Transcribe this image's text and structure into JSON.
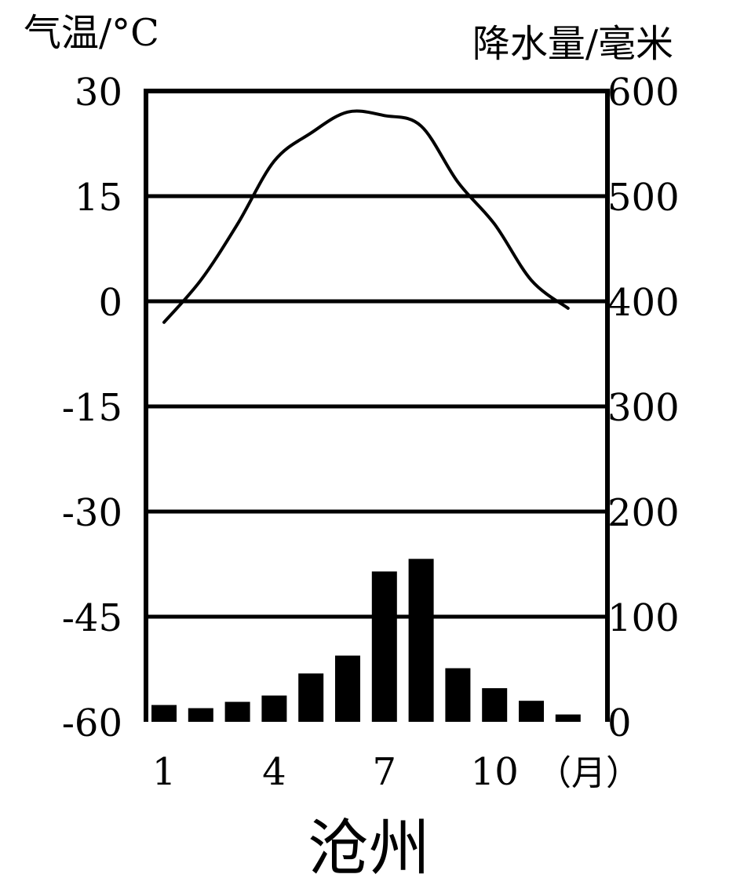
{
  "chart_data": {
    "type": "bar+line",
    "title": "沧州",
    "left_axis": {
      "label": "气温/°C",
      "range": [
        -60,
        30
      ],
      "ticks": [
        "30",
        "15",
        "0",
        "-15",
        "-30",
        "-45",
        "-60"
      ],
      "tick_values": [
        30,
        15,
        0,
        -15,
        -30,
        -45,
        -60
      ]
    },
    "right_axis": {
      "label": "降水量/毫米",
      "range": [
        0,
        600
      ],
      "ticks": [
        "600",
        "500",
        "400",
        "300",
        "200",
        "100",
        "0"
      ],
      "tick_values": [
        600,
        500,
        400,
        300,
        200,
        100,
        0
      ]
    },
    "x_axis": {
      "categories": [
        1,
        2,
        3,
        4,
        5,
        6,
        7,
        8,
        9,
        10,
        11,
        12
      ],
      "tick_labels": [
        {
          "month": 1,
          "label": "1"
        },
        {
          "month": 4,
          "label": "4"
        },
        {
          "month": 7,
          "label": "7"
        },
        {
          "month": 10,
          "label": "10"
        }
      ],
      "unit_label": "（月）"
    },
    "gridlines_temperature": [
      15,
      0,
      -15,
      -30,
      -45
    ],
    "temperature": {
      "x": [
        1,
        2,
        3,
        4,
        5,
        6,
        7,
        8,
        9,
        10,
        11,
        12
      ],
      "values": [
        -3,
        3,
        11,
        20,
        24,
        27,
        26.5,
        25,
        17,
        11,
        3,
        -1
      ]
    },
    "precipitation": {
      "x": [
        1,
        2,
        3,
        4,
        5,
        6,
        7,
        8,
        9,
        10,
        11,
        12
      ],
      "values": [
        16,
        13,
        19,
        25,
        46,
        63,
        143,
        155,
        51,
        32,
        20,
        7
      ]
    }
  }
}
